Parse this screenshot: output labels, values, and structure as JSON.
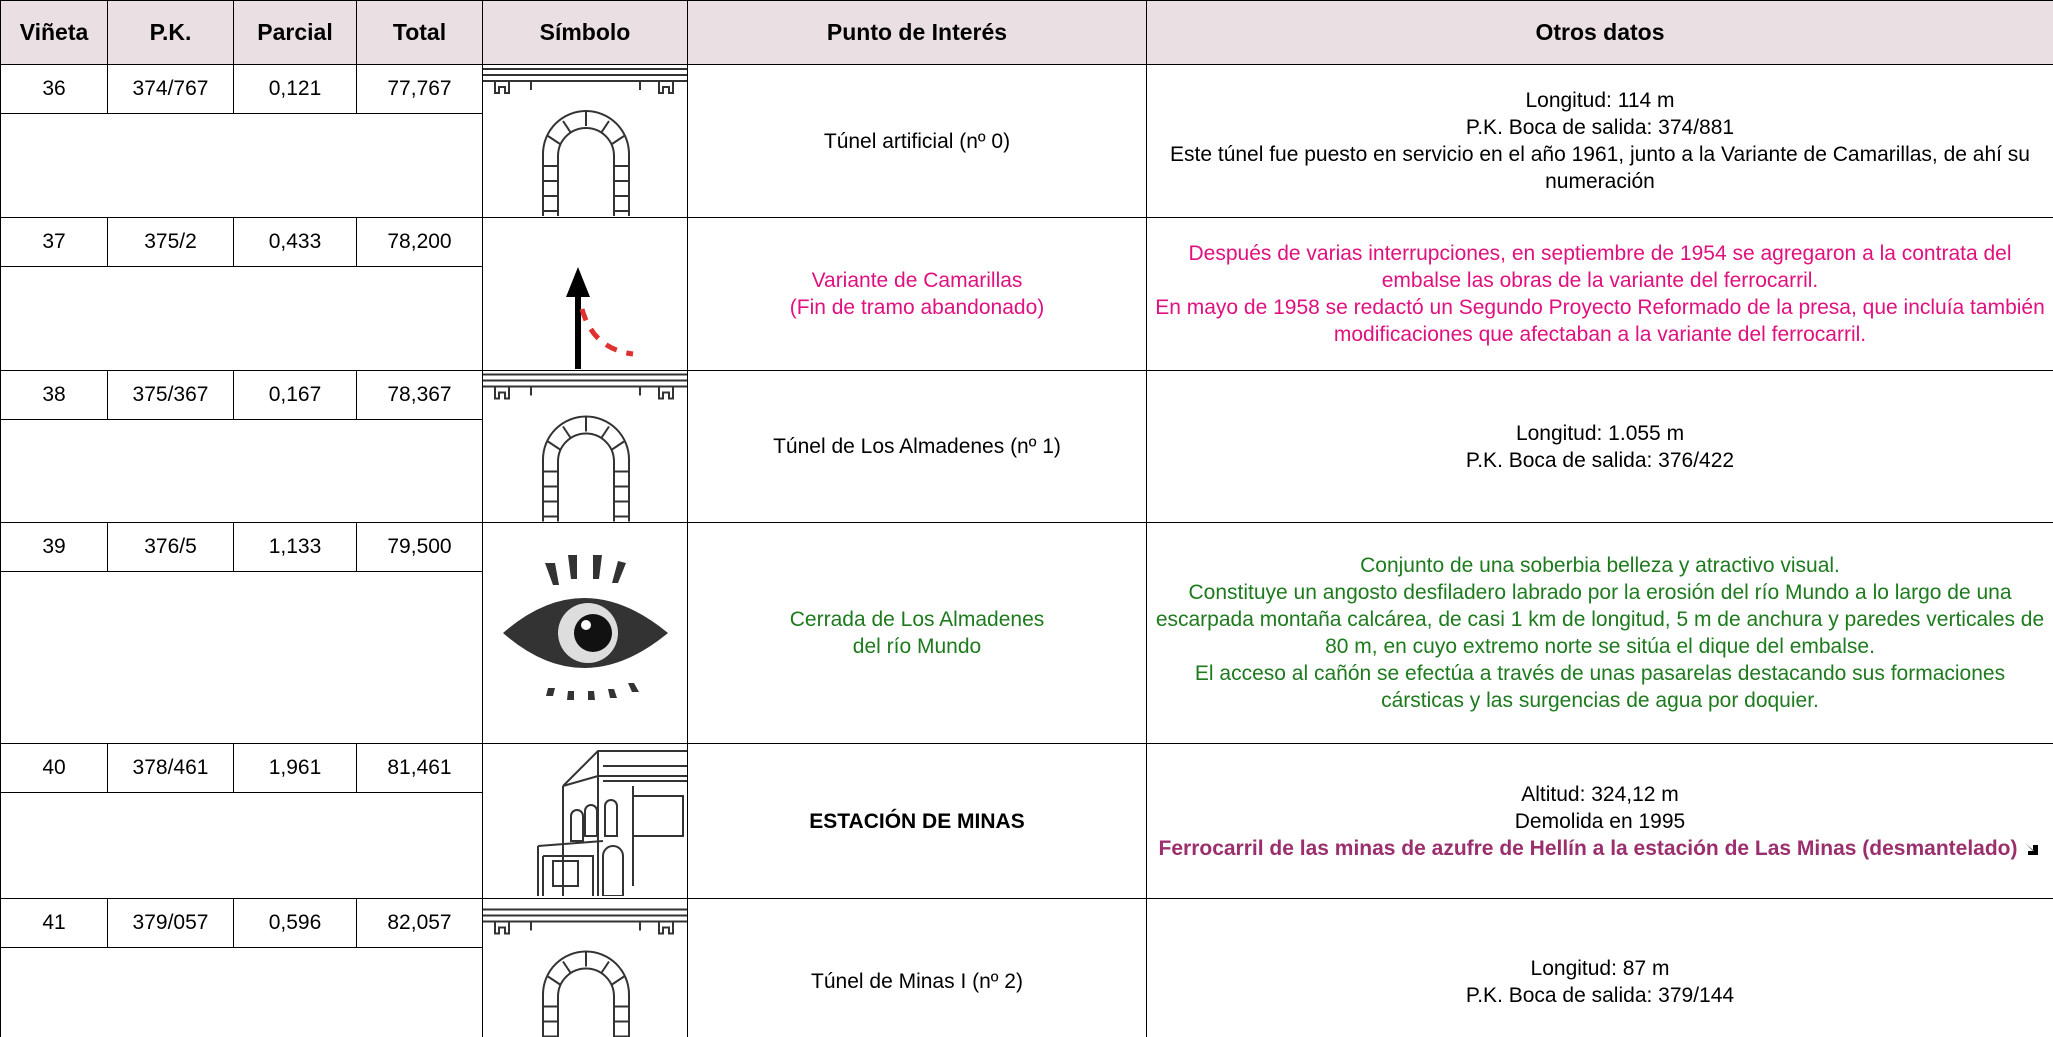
{
  "header": [
    "Viñeta",
    "P.K.",
    "Parcial",
    "Total",
    "Símbolo",
    "Punto de Interés",
    "Otros datos"
  ],
  "rows": [
    {
      "vineta": "36",
      "pk": "374/767",
      "parcial": "0,121",
      "total": "77,767",
      "punto": [
        "Túnel artificial (nº 0)"
      ],
      "otros": [
        "Longitud: 114 m",
        "P.K. Boca de salida: 374/881",
        "Este túnel fue puesto en servicio en el año 1961, junto a la Variante de Camarillas, de ahí su numeración"
      ]
    },
    {
      "vineta": "37",
      "pk": "375/2",
      "parcial": "0,433",
      "total": "78,200",
      "punto": [
        "Variante de Camarillas",
        "(Fin de tramo abandonado)"
      ],
      "otros": [
        "Después de varias interrupciones, en septiembre de 1954 se agregaron a la contrata del embalse las obras de la variante del ferrocarril.",
        "En mayo de 1958 se redactó un Segundo Proyecto Reformado de la presa, que incluía también modificaciones que afectaban a la variante del ferrocarril."
      ]
    },
    {
      "vineta": "38",
      "pk": "375/367",
      "parcial": "0,167",
      "total": "78,367",
      "punto": [
        "Túnel de Los Almadenes (nº 1)"
      ],
      "otros": [
        "Longitud: 1.055 m",
        "P.K. Boca de salida: 376/422"
      ]
    },
    {
      "vineta": "39",
      "pk": "376/5",
      "parcial": "1,133",
      "total": "79,500",
      "punto": [
        "Cerrada de Los Almadenes",
        "del río Mundo"
      ],
      "otros": [
        "Conjunto de una soberbia belleza y atractivo visual.",
        "Constituye un angosto desfiladero labrado por la erosión del río Mundo a lo largo de una escarpada montaña calcárea, de casi 1 km de longitud, 5 m de anchura y paredes verticales de 80 m, en cuyo extremo norte se sitúa el dique del embalse.",
        "El acceso al cañón se efectúa a través de unas pasarelas destacando sus formaciones cársticas y las surgencias de agua por doquier."
      ]
    },
    {
      "vineta": "40",
      "pk": "378/461",
      "parcial": "1,961",
      "total": "81,461",
      "punto": [
        "ESTACIÓN DE MINAS"
      ],
      "otros": [
        "Altitud: 324,12 m",
        "Demolida en 1995"
      ],
      "link": "Ferrocarril de las minas de azufre de Hellín a la estación de Las Minas (desmantelado)"
    },
    {
      "vineta": "41",
      "pk": "379/057",
      "parcial": "0,596",
      "total": "82,057",
      "punto": [
        "Túnel de Minas I (nº 2)"
      ],
      "otros": [
        "Longitud: 87 m",
        "P.K. Boca de salida: 379/144"
      ]
    }
  ]
}
